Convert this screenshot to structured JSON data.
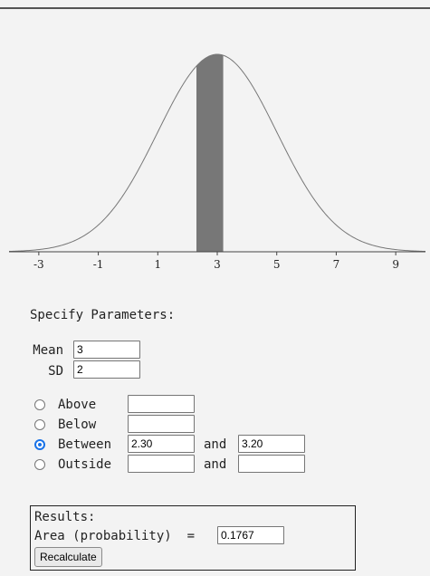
{
  "chart_data": {
    "type": "area",
    "distribution": "normal",
    "mean": 3,
    "sd": 2,
    "xlim": [
      -4,
      10
    ],
    "ticks": [
      -3,
      -1,
      1,
      3,
      5,
      7,
      9
    ],
    "shaded_range": [
      2.3,
      3.2
    ],
    "curve_color": "#777777",
    "shade_color": "#777777"
  },
  "params": {
    "title": "Specify Parameters:",
    "mean_label": "Mean",
    "mean_value": "3",
    "sd_label": "SD",
    "sd_value": "2"
  },
  "options": [
    {
      "label": "Above",
      "value1": "",
      "value2": null,
      "checked": false
    },
    {
      "label": "Below",
      "value1": "",
      "value2": null,
      "checked": false
    },
    {
      "label": "Between",
      "value1": "2.30",
      "value2": "3.20",
      "checked": true
    },
    {
      "label": "Outside",
      "value1": "",
      "value2": "",
      "checked": false
    }
  ],
  "and_label": "and",
  "results": {
    "title": "Results:",
    "area_label": "Area (probability)  =",
    "area_value": "0.1767",
    "button_label": "Recalculate"
  },
  "colors": {
    "accent": "#1a73e8"
  }
}
